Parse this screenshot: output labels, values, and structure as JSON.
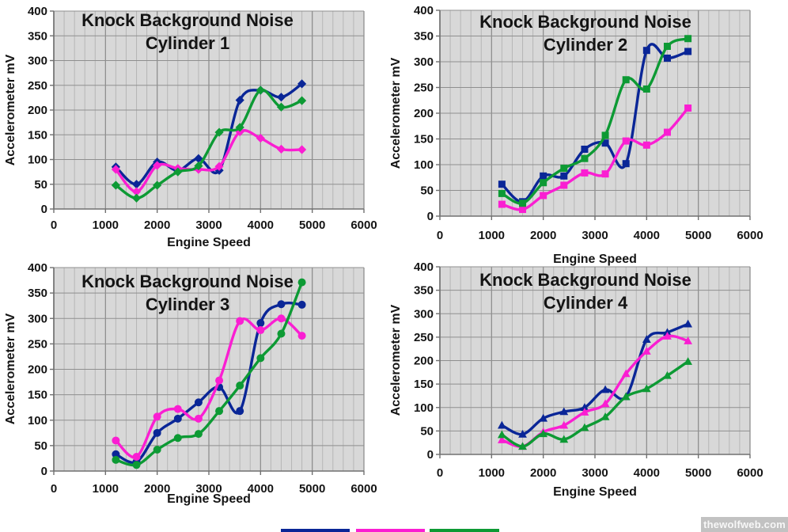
{
  "page": {
    "background": "#ffffff",
    "watermark": "thewolfweb.com"
  },
  "palette": {
    "plot_background": "#d8d8d8",
    "minor_gridline": "#b6b6b6",
    "major_gridline": "#8f8f8f",
    "axis_line": "#707070",
    "text": "#141414"
  },
  "legend": {
    "position": "bottom-clipped",
    "swatches": [
      "#0a2697",
      "#fa1ed2",
      "#0d9a34"
    ]
  },
  "chart_data": [
    {
      "type": "line",
      "title": [
        "Knock Background Noise",
        "Cylinder 1"
      ],
      "xlabel": "Engine Speed",
      "ylabel": "Accelerometer mV",
      "xlim": [
        0,
        6000
      ],
      "ylim": [
        0,
        400
      ],
      "x_ticks": [
        0,
        1000,
        2000,
        3000,
        4000,
        5000,
        6000
      ],
      "y_ticks": [
        0,
        50,
        100,
        150,
        200,
        250,
        300,
        350,
        400
      ],
      "x_minor_step": 200,
      "grid": true,
      "marker": "diamond",
      "x": [
        1200,
        1600,
        2000,
        2400,
        2800,
        3200,
        3600,
        4000,
        4400,
        4800
      ],
      "series": [
        {
          "name": "navy",
          "color": "#0a2697",
          "values": [
            85,
            50,
            95,
            78,
            102,
            78,
            220,
            240,
            226,
            253
          ]
        },
        {
          "name": "magenta",
          "color": "#fa1ed2",
          "values": [
            80,
            35,
            88,
            82,
            80,
            86,
            156,
            143,
            121,
            120
          ]
        },
        {
          "name": "green",
          "color": "#0d9a34",
          "values": [
            48,
            22,
            48,
            75,
            87,
            155,
            165,
            240,
            206,
            219
          ]
        }
      ]
    },
    {
      "type": "line",
      "title": [
        "Knock Background Noise",
        "Cylinder 2"
      ],
      "xlabel": "Engine Speed",
      "ylabel": "Accelerometer mV",
      "xlim": [
        0,
        6000
      ],
      "ylim": [
        0,
        400
      ],
      "x_ticks": [
        0,
        1000,
        2000,
        3000,
        4000,
        5000,
        6000
      ],
      "y_ticks": [
        0,
        50,
        100,
        150,
        200,
        250,
        300,
        350,
        400
      ],
      "x_minor_step": 200,
      "grid": true,
      "marker": "square",
      "x": [
        1200,
        1600,
        2000,
        2400,
        2800,
        3200,
        3600,
        4000,
        4400,
        4800
      ],
      "series": [
        {
          "name": "navy",
          "color": "#0a2697",
          "values": [
            62,
            28,
            78,
            78,
            130,
            142,
            102,
            322,
            307,
            320
          ]
        },
        {
          "name": "magenta",
          "color": "#fa1ed2",
          "values": [
            23,
            13,
            40,
            60,
            84,
            82,
            146,
            138,
            163,
            210
          ]
        },
        {
          "name": "green",
          "color": "#0d9a34",
          "values": [
            44,
            25,
            65,
            93,
            112,
            157,
            265,
            247,
            330,
            345
          ]
        }
      ]
    },
    {
      "type": "line",
      "title": [
        "Knock Background Noise",
        "Cylinder 3"
      ],
      "xlabel": "Engine Speed",
      "ylabel": "Accelerometer mV",
      "xlim": [
        0,
        6000
      ],
      "ylim": [
        0,
        400
      ],
      "x_ticks": [
        0,
        1000,
        2000,
        3000,
        4000,
        5000,
        6000
      ],
      "y_ticks": [
        0,
        50,
        100,
        150,
        200,
        250,
        300,
        350,
        400
      ],
      "x_minor_step": 200,
      "grid": true,
      "marker": "circle",
      "x": [
        1200,
        1600,
        2000,
        2400,
        2800,
        3200,
        3600,
        4000,
        4400,
        4800
      ],
      "series": [
        {
          "name": "navy",
          "color": "#0a2697",
          "values": [
            33,
            18,
            75,
            103,
            135,
            165,
            118,
            291,
            328,
            327
          ]
        },
        {
          "name": "magenta",
          "color": "#fa1ed2",
          "values": [
            60,
            28,
            107,
            122,
            103,
            178,
            295,
            277,
            300,
            266
          ]
        },
        {
          "name": "green",
          "color": "#0d9a34",
          "values": [
            22,
            12,
            42,
            65,
            73,
            118,
            168,
            222,
            270,
            371
          ]
        }
      ]
    },
    {
      "type": "line",
      "title": [
        "Knock Background Noise",
        "Cylinder 4"
      ],
      "xlabel": "Engine Speed",
      "ylabel": "Accelerometer mV",
      "xlim": [
        0,
        6000
      ],
      "ylim": [
        0,
        400
      ],
      "x_ticks": [
        0,
        1000,
        2000,
        3000,
        4000,
        5000,
        6000
      ],
      "y_ticks": [
        0,
        50,
        100,
        150,
        200,
        250,
        300,
        350,
        400
      ],
      "x_minor_step": 200,
      "grid": true,
      "marker": "triangle",
      "x": [
        1200,
        1600,
        2000,
        2400,
        2800,
        3200,
        3600,
        4000,
        4400,
        4800
      ],
      "series": [
        {
          "name": "navy",
          "color": "#0a2697",
          "values": [
            62,
            43,
            77,
            91,
            100,
            138,
            123,
            245,
            260,
            278
          ]
        },
        {
          "name": "magenta",
          "color": "#fa1ed2",
          "values": [
            31,
            17,
            48,
            62,
            90,
            108,
            172,
            220,
            252,
            242
          ]
        },
        {
          "name": "green",
          "color": "#0d9a34",
          "values": [
            42,
            17,
            44,
            32,
            57,
            80,
            123,
            140,
            168,
            198
          ]
        }
      ]
    }
  ]
}
